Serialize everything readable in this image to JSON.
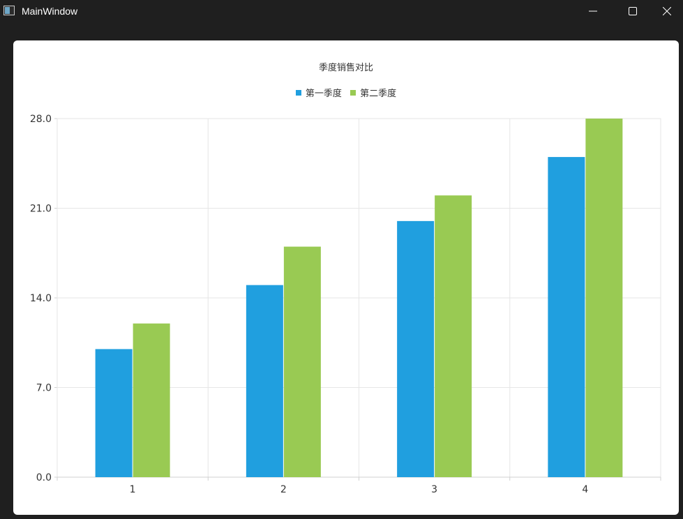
{
  "window": {
    "title": "MainWindow",
    "controls": [
      "minimize-icon",
      "maximize-icon",
      "close-icon"
    ]
  },
  "chart_data": {
    "type": "bar",
    "title": "季度销售对比",
    "categories": [
      "1",
      "2",
      "3",
      "4"
    ],
    "series": [
      {
        "name": "第一季度",
        "values": [
          10,
          15,
          20,
          25
        ],
        "color": "#209fdf"
      },
      {
        "name": "第二季度",
        "values": [
          12,
          18,
          22,
          28
        ],
        "color": "#99ca53"
      }
    ],
    "ylim": [
      0,
      28
    ],
    "yticks": [
      "0.0",
      "7.0",
      "14.0",
      "21.0",
      "28.0"
    ],
    "xlabel": "",
    "ylabel": "",
    "grid": true,
    "legend_position": "top"
  },
  "colors": {
    "grid": "#e6e6e6",
    "axis": "#d0d0d0",
    "label": "#333333"
  }
}
